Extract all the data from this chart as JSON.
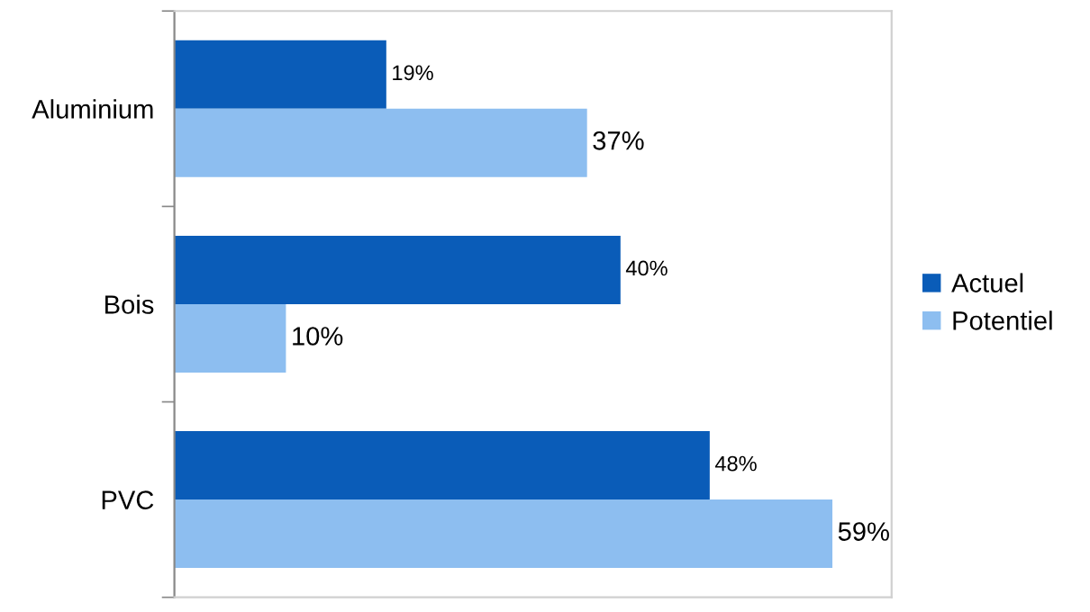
{
  "chart_data": {
    "type": "bar",
    "orientation": "horizontal",
    "categories": [
      "Aluminium",
      "Bois",
      "PVC"
    ],
    "series": [
      {
        "name": "Actuel",
        "color": "#0a5cb8",
        "values": [
          19,
          40,
          48
        ],
        "value_labels": [
          "19%",
          "40%",
          "48%"
        ]
      },
      {
        "name": "Potentiel",
        "color": "#8dbef0",
        "values": [
          37,
          10,
          59
        ],
        "value_labels": [
          "37%",
          "10%",
          "59%"
        ]
      }
    ],
    "legend": "right",
    "grid": false,
    "tick_labels": "y"
  }
}
